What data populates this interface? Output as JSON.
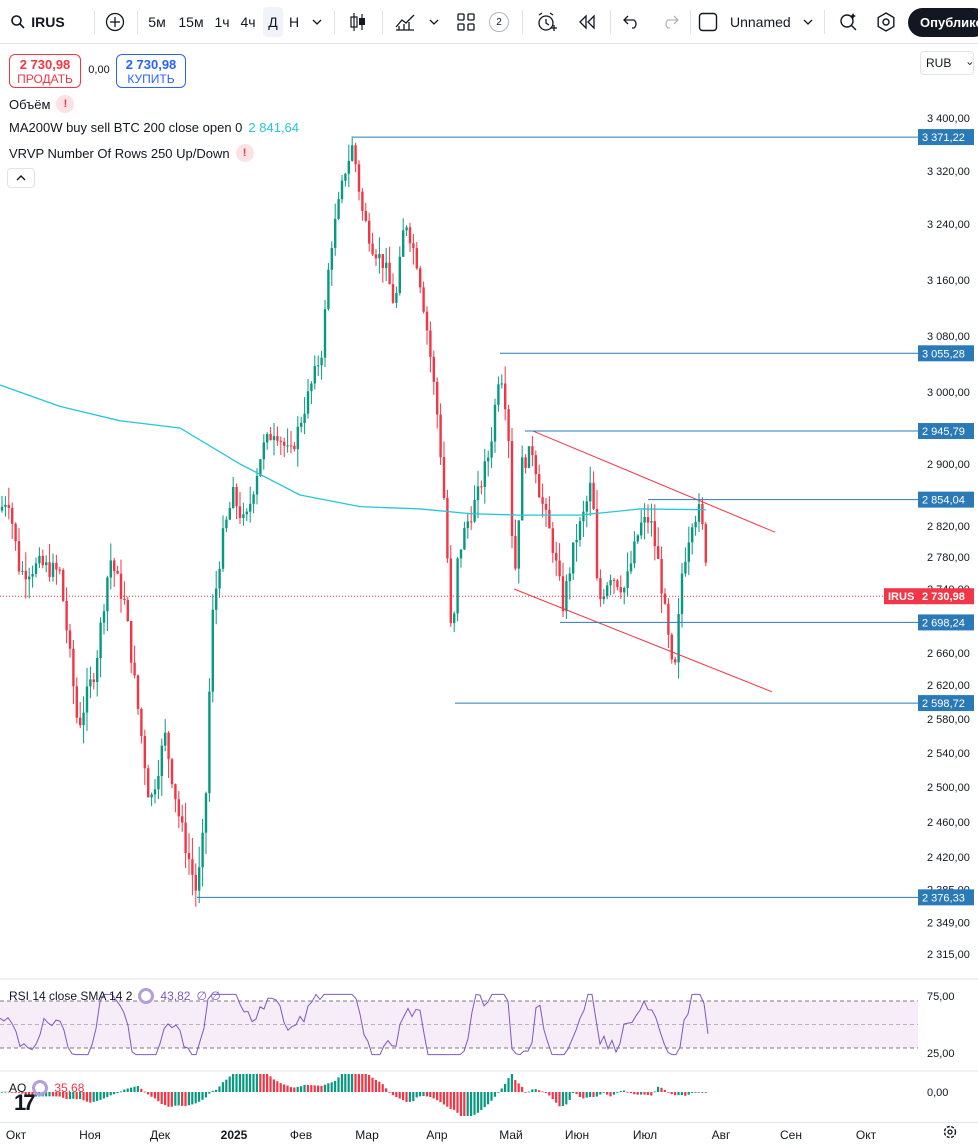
{
  "toolbar": {
    "symbol": "IRUS",
    "search_icon": "search-icon",
    "add_icon": "plus-circle-icon",
    "intervals": [
      "5м",
      "15м",
      "1ч",
      "4ч",
      "Д",
      "Н"
    ],
    "active_interval": "Д",
    "layouts_count": "2",
    "layout_name": "Unnamed",
    "publish_label": "Опублико"
  },
  "trade": {
    "sell_price": "2 730,98",
    "sell_label": "ПРОДАТЬ",
    "spread": "0,00",
    "buy_price": "2 730,98",
    "buy_label": "КУПИТЬ"
  },
  "legend": {
    "volume": "Объём",
    "ma_label": "MA200W buy sell BTC 200 close open 0",
    "ma_value": "2 841,64",
    "vrvp_label": "VRVP Number Of Rows 250 Up/Down"
  },
  "currency": "RUB",
  "price_axis": {
    "ticks": [
      "3 400,00",
      "3 320,00",
      "3 240,00",
      "3 160,00",
      "3 080,00",
      "3 000,00",
      "2 900,00",
      "2 820,00",
      "2 780,00",
      "2 740,00",
      "2 660,00",
      "2 620,00",
      "2 580,00",
      "2 540,00",
      "2 500,00",
      "2 460,00",
      "2 420,00",
      "2 385,00",
      "2 349,00",
      "2 315,00"
    ],
    "markers": [
      {
        "label": "3 371,22",
        "price": 3371.22
      },
      {
        "label": "3 055,28",
        "price": 3055.28
      },
      {
        "label": "2 945,79",
        "price": 2945.79
      },
      {
        "label": "2 854,04",
        "price": 2854.04
      },
      {
        "label": "2 698,24",
        "price": 2698.24
      },
      {
        "label": "2 598,72",
        "price": 2598.72
      },
      {
        "label": "2 376,33",
        "price": 2376.33
      }
    ],
    "current_symbol": "IRUS",
    "current_price": "2 730,98"
  },
  "rsi": {
    "label": "RSI 14 close SMA 14 2",
    "value": "43,82",
    "extra": "∅ ∅",
    "ticks": [
      "75,00",
      "25,00"
    ]
  },
  "ao": {
    "label": "AO",
    "value": "35,68",
    "tick": "0,00"
  },
  "time_axis": [
    "Окт",
    "Ноя",
    "Дек",
    "2025",
    "Фев",
    "Мар",
    "Апр",
    "Май",
    "Июн",
    "Июл",
    "Авг",
    "Сен",
    "Окт"
  ],
  "colors": {
    "up": "#089981",
    "down": "#f23645",
    "ma": "#26c6da",
    "level": "#2a7ab8",
    "channel": "#f23645",
    "rsi": "#7e57c2"
  }
}
